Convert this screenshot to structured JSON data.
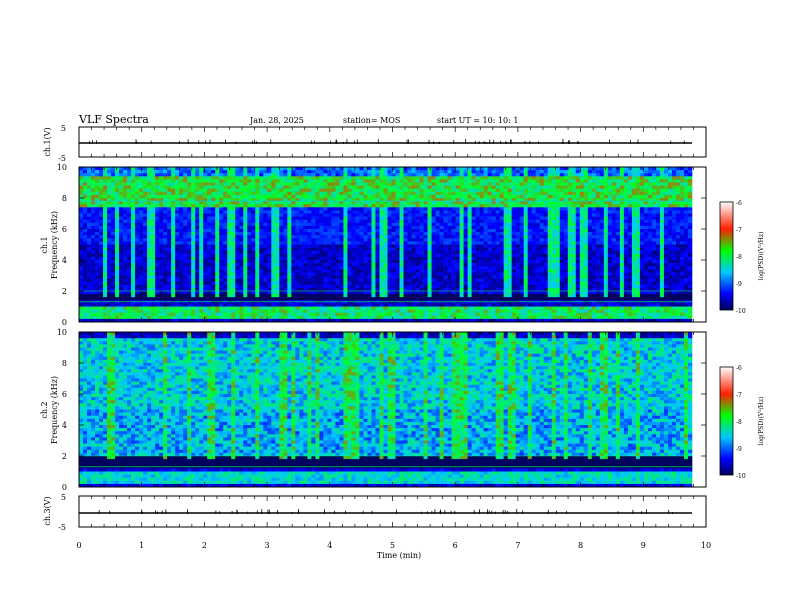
{
  "header": {
    "title": "VLF Spectra",
    "date": "Jan. 28, 2025",
    "station": "station= MOS",
    "start": "start UT =  10: 10: 1"
  },
  "colorbar": {
    "label": "log(PSD)(V²/Hz)",
    "ticks": [
      "-6",
      "-7",
      "-8",
      "-9",
      "-10"
    ]
  },
  "chart_data": [
    {
      "type": "line",
      "name": "ch1-voltage",
      "ylabel": "ch.1(V)",
      "ylim": [
        -5,
        5
      ],
      "yticks": [
        "5",
        "-5"
      ],
      "xlim": [
        0,
        10
      ],
      "note_level": -1.2
    },
    {
      "type": "heatmap",
      "name": "ch1-spectrogram",
      "ylabel": "ch.1\nFrequency (kHz)",
      "ylim": [
        0,
        10
      ],
      "yticks": [
        "10",
        "8",
        "6",
        "4",
        "2",
        "0"
      ],
      "xlim": [
        0,
        10
      ],
      "zlabel": "log(PSD)(V²/Hz)",
      "zlim": [
        -10,
        -6
      ],
      "band_strong_khz": [
        7.5,
        9.3
      ],
      "band_low_khz": [
        0.1,
        1.0
      ]
    },
    {
      "type": "heatmap",
      "name": "ch2-spectrogram",
      "ylabel": "ch.2\nFrequency (kHz)",
      "ylim": [
        0,
        10
      ],
      "yticks": [
        "10",
        "8",
        "6",
        "4",
        "2",
        "0"
      ],
      "xlim": [
        0,
        10
      ],
      "zlabel": "log(PSD)(V²/Hz)",
      "zlim": [
        -10,
        -6
      ],
      "band_strong_khz": [
        2.0,
        9.5
      ],
      "band_low_khz": [
        0.1,
        1.0
      ]
    },
    {
      "type": "line",
      "name": "ch3-voltage",
      "ylabel": "ch.3(V)",
      "ylim": [
        -5,
        5
      ],
      "yticks": [
        "5",
        "-5"
      ],
      "xlim": [
        0,
        10
      ],
      "xlabel": "Time (min)",
      "xticks": [
        "0",
        "1",
        "2",
        "3",
        "4",
        "5",
        "6",
        "7",
        "8",
        "9",
        "10"
      ],
      "note_level": -1.2
    }
  ]
}
